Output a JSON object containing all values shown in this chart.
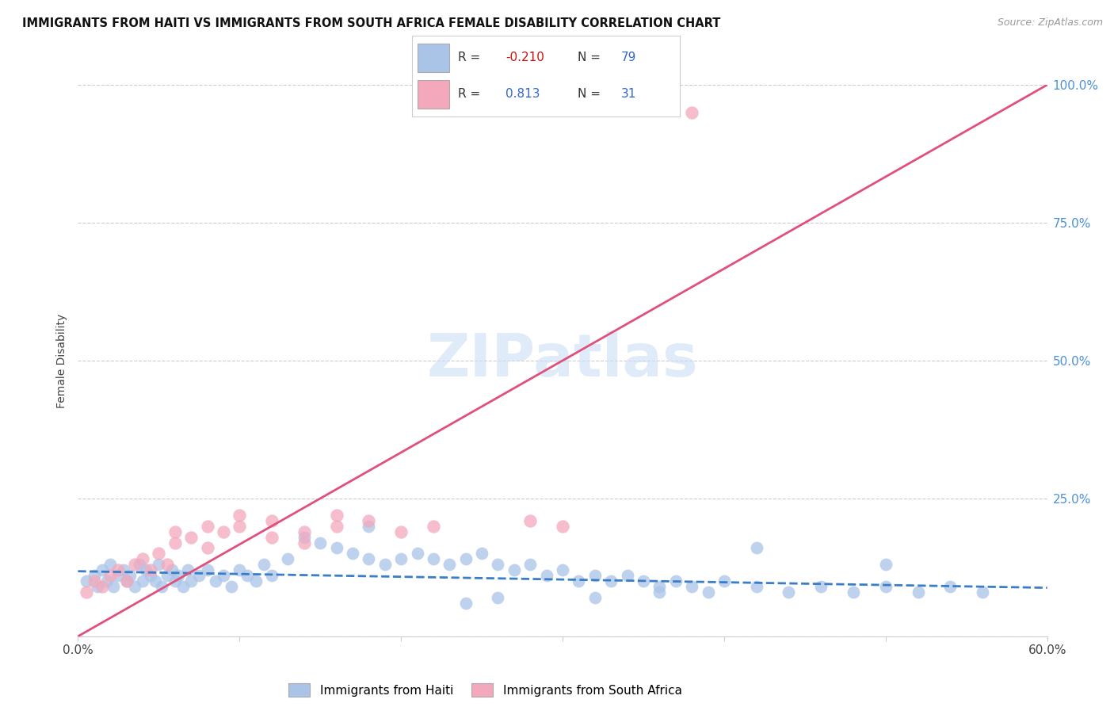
{
  "title": "IMMIGRANTS FROM HAITI VS IMMIGRANTS FROM SOUTH AFRICA FEMALE DISABILITY CORRELATION CHART",
  "source": "Source: ZipAtlas.com",
  "ylabel": "Female Disability",
  "x_min": 0.0,
  "x_max": 0.6,
  "y_min": 0.0,
  "y_max": 1.0,
  "x_ticks": [
    0.0,
    0.1,
    0.2,
    0.3,
    0.4,
    0.5,
    0.6
  ],
  "x_tick_labels": [
    "0.0%",
    "",
    "",
    "",
    "",
    "",
    "60.0%"
  ],
  "y_ticks": [
    0.0,
    0.25,
    0.5,
    0.75,
    1.0
  ],
  "y_tick_labels": [
    "",
    "25.0%",
    "50.0%",
    "75.0%",
    "100.0%"
  ],
  "haiti_R": "-0.210",
  "haiti_N": "79",
  "sa_R": "0.813",
  "sa_N": "31",
  "haiti_color": "#aac4e8",
  "sa_color": "#f4a8bc",
  "haiti_line_color": "#3a7dc9",
  "sa_line_color": "#e0507a",
  "watermark": "ZIPatlas",
  "haiti_trend_x0": 0.0,
  "haiti_trend_y0": 0.118,
  "haiti_trend_x1": 0.6,
  "haiti_trend_y1": 0.088,
  "sa_trend_x0": 0.0,
  "sa_trend_y0": 0.0,
  "sa_trend_x1": 0.6,
  "sa_trend_y1": 1.0,
  "haiti_scatter_x": [
    0.005,
    0.01,
    0.012,
    0.015,
    0.018,
    0.02,
    0.022,
    0.025,
    0.028,
    0.03,
    0.032,
    0.035,
    0.038,
    0.04,
    0.042,
    0.045,
    0.048,
    0.05,
    0.052,
    0.055,
    0.058,
    0.06,
    0.062,
    0.065,
    0.068,
    0.07,
    0.075,
    0.08,
    0.085,
    0.09,
    0.095,
    0.1,
    0.105,
    0.11,
    0.115,
    0.12,
    0.13,
    0.14,
    0.15,
    0.16,
    0.17,
    0.18,
    0.19,
    0.2,
    0.21,
    0.22,
    0.23,
    0.24,
    0.25,
    0.26,
    0.27,
    0.28,
    0.29,
    0.3,
    0.31,
    0.32,
    0.33,
    0.34,
    0.35,
    0.36,
    0.37,
    0.38,
    0.39,
    0.4,
    0.42,
    0.44,
    0.46,
    0.48,
    0.5,
    0.52,
    0.54,
    0.56,
    0.32,
    0.36,
    0.24,
    0.26,
    0.42,
    0.18,
    0.5
  ],
  "haiti_scatter_y": [
    0.1,
    0.11,
    0.09,
    0.12,
    0.1,
    0.13,
    0.09,
    0.11,
    0.12,
    0.1,
    0.11,
    0.09,
    0.13,
    0.1,
    0.12,
    0.11,
    0.1,
    0.13,
    0.09,
    0.11,
    0.12,
    0.1,
    0.11,
    0.09,
    0.12,
    0.1,
    0.11,
    0.12,
    0.1,
    0.11,
    0.09,
    0.12,
    0.11,
    0.1,
    0.13,
    0.11,
    0.14,
    0.18,
    0.17,
    0.16,
    0.15,
    0.14,
    0.13,
    0.14,
    0.15,
    0.14,
    0.13,
    0.14,
    0.15,
    0.13,
    0.12,
    0.13,
    0.11,
    0.12,
    0.1,
    0.11,
    0.1,
    0.11,
    0.1,
    0.09,
    0.1,
    0.09,
    0.08,
    0.1,
    0.09,
    0.08,
    0.09,
    0.08,
    0.09,
    0.08,
    0.09,
    0.08,
    0.07,
    0.08,
    0.06,
    0.07,
    0.16,
    0.2,
    0.13
  ],
  "sa_scatter_x": [
    0.005,
    0.01,
    0.015,
    0.02,
    0.025,
    0.03,
    0.035,
    0.04,
    0.045,
    0.05,
    0.055,
    0.06,
    0.07,
    0.08,
    0.09,
    0.1,
    0.12,
    0.14,
    0.16,
    0.2,
    0.22,
    0.08,
    0.1,
    0.12,
    0.28,
    0.3,
    0.14,
    0.18,
    0.06,
    0.16,
    0.38
  ],
  "sa_scatter_y": [
    0.08,
    0.1,
    0.09,
    0.11,
    0.12,
    0.1,
    0.13,
    0.14,
    0.12,
    0.15,
    0.13,
    0.17,
    0.18,
    0.16,
    0.19,
    0.2,
    0.18,
    0.17,
    0.2,
    0.19,
    0.2,
    0.2,
    0.22,
    0.21,
    0.21,
    0.2,
    0.19,
    0.21,
    0.19,
    0.22,
    0.95
  ]
}
